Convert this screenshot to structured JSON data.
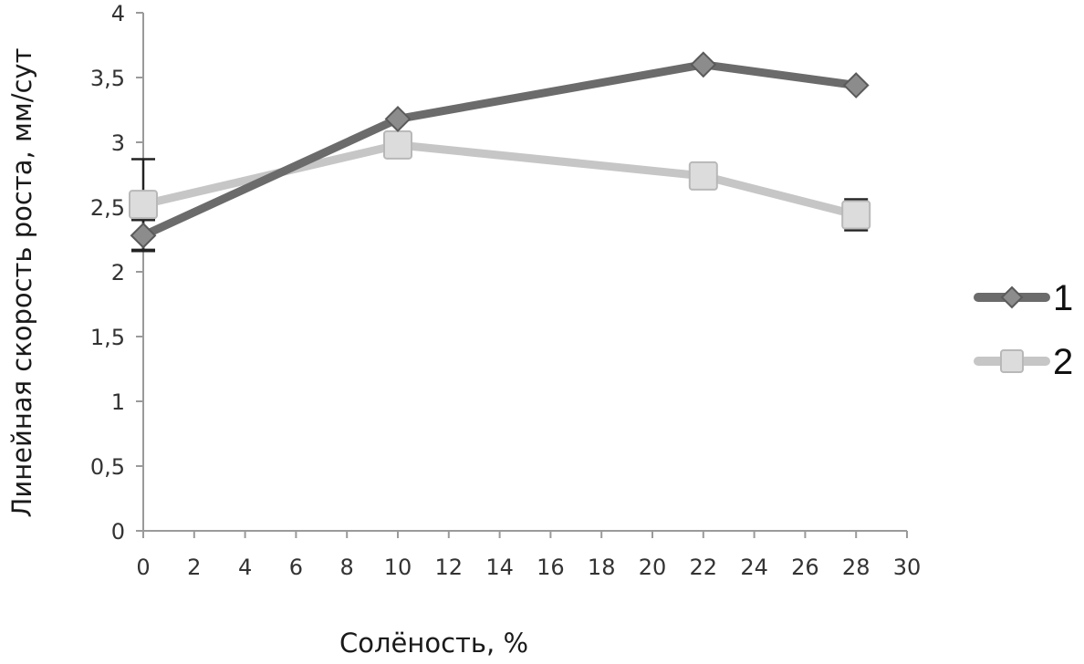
{
  "chart_data": {
    "type": "line",
    "xlabel": "Солёность, %",
    "ylabel": "Линейная скорость роста, мм/сут",
    "xlim": [
      0,
      30
    ],
    "ylim": [
      0,
      4
    ],
    "x_ticks": [
      0,
      2,
      4,
      6,
      8,
      10,
      12,
      14,
      16,
      18,
      20,
      22,
      24,
      26,
      28,
      30
    ],
    "x_tick_labels": [
      "0",
      "2",
      "4",
      "6",
      "8",
      "10",
      "12",
      "14",
      "16",
      "18",
      "20",
      "22",
      "24",
      "26",
      "28",
      "30"
    ],
    "y_ticks": [
      0,
      0.5,
      1,
      1.5,
      2,
      2.5,
      3,
      3.5,
      4
    ],
    "y_tick_labels": [
      "0",
      "0,5",
      "1",
      "1,5",
      "2",
      "2,5",
      "3",
      "3,5",
      "4"
    ],
    "grid": false,
    "legend_position": "right",
    "series": [
      {
        "name": "1",
        "color": "#6b6b6b",
        "marker": "diamond",
        "x": [
          0,
          10,
          22,
          28
        ],
        "y": [
          2.28,
          3.18,
          3.6,
          3.44
        ],
        "error": [
          0.12,
          null,
          null,
          null
        ]
      },
      {
        "name": "2",
        "color": "#c6c6c6",
        "marker": "square",
        "x": [
          0,
          10,
          22,
          28
        ],
        "y": [
          2.52,
          2.98,
          2.74,
          2.44
        ],
        "error": [
          0.35,
          null,
          null,
          0.12
        ]
      }
    ]
  }
}
